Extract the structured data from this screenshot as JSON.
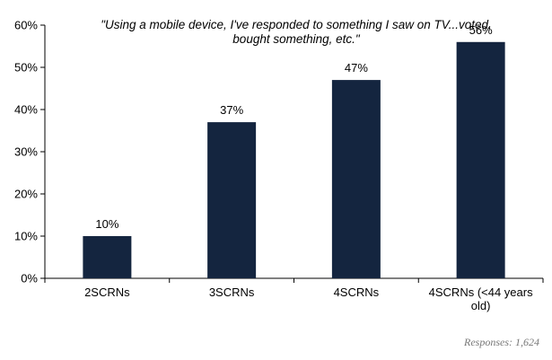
{
  "chart_data": {
    "type": "bar",
    "title_lines": [
      "\"Using a mobile device, I've responded to something I saw on TV...voted,",
      "bought something, etc.\""
    ],
    "categories": [
      [
        "2SCRNs"
      ],
      [
        "3SCRNs"
      ],
      [
        "4SCRNs"
      ],
      [
        "4SCRNs (<44 years",
        "old)"
      ]
    ],
    "values": [
      10,
      37,
      47,
      56
    ],
    "value_labels": [
      "10%",
      "37%",
      "47%",
      "56%"
    ],
    "y_ticks": [
      0,
      10,
      20,
      30,
      40,
      50,
      60
    ],
    "y_tick_labels": [
      "0%",
      "10%",
      "20%",
      "30%",
      "40%",
      "50%",
      "60%"
    ],
    "ylim": [
      0,
      60
    ],
    "xlabel": "",
    "ylabel": "",
    "grid": false,
    "bar_color": "#14253f"
  },
  "footnote": "Responses: 1,624"
}
